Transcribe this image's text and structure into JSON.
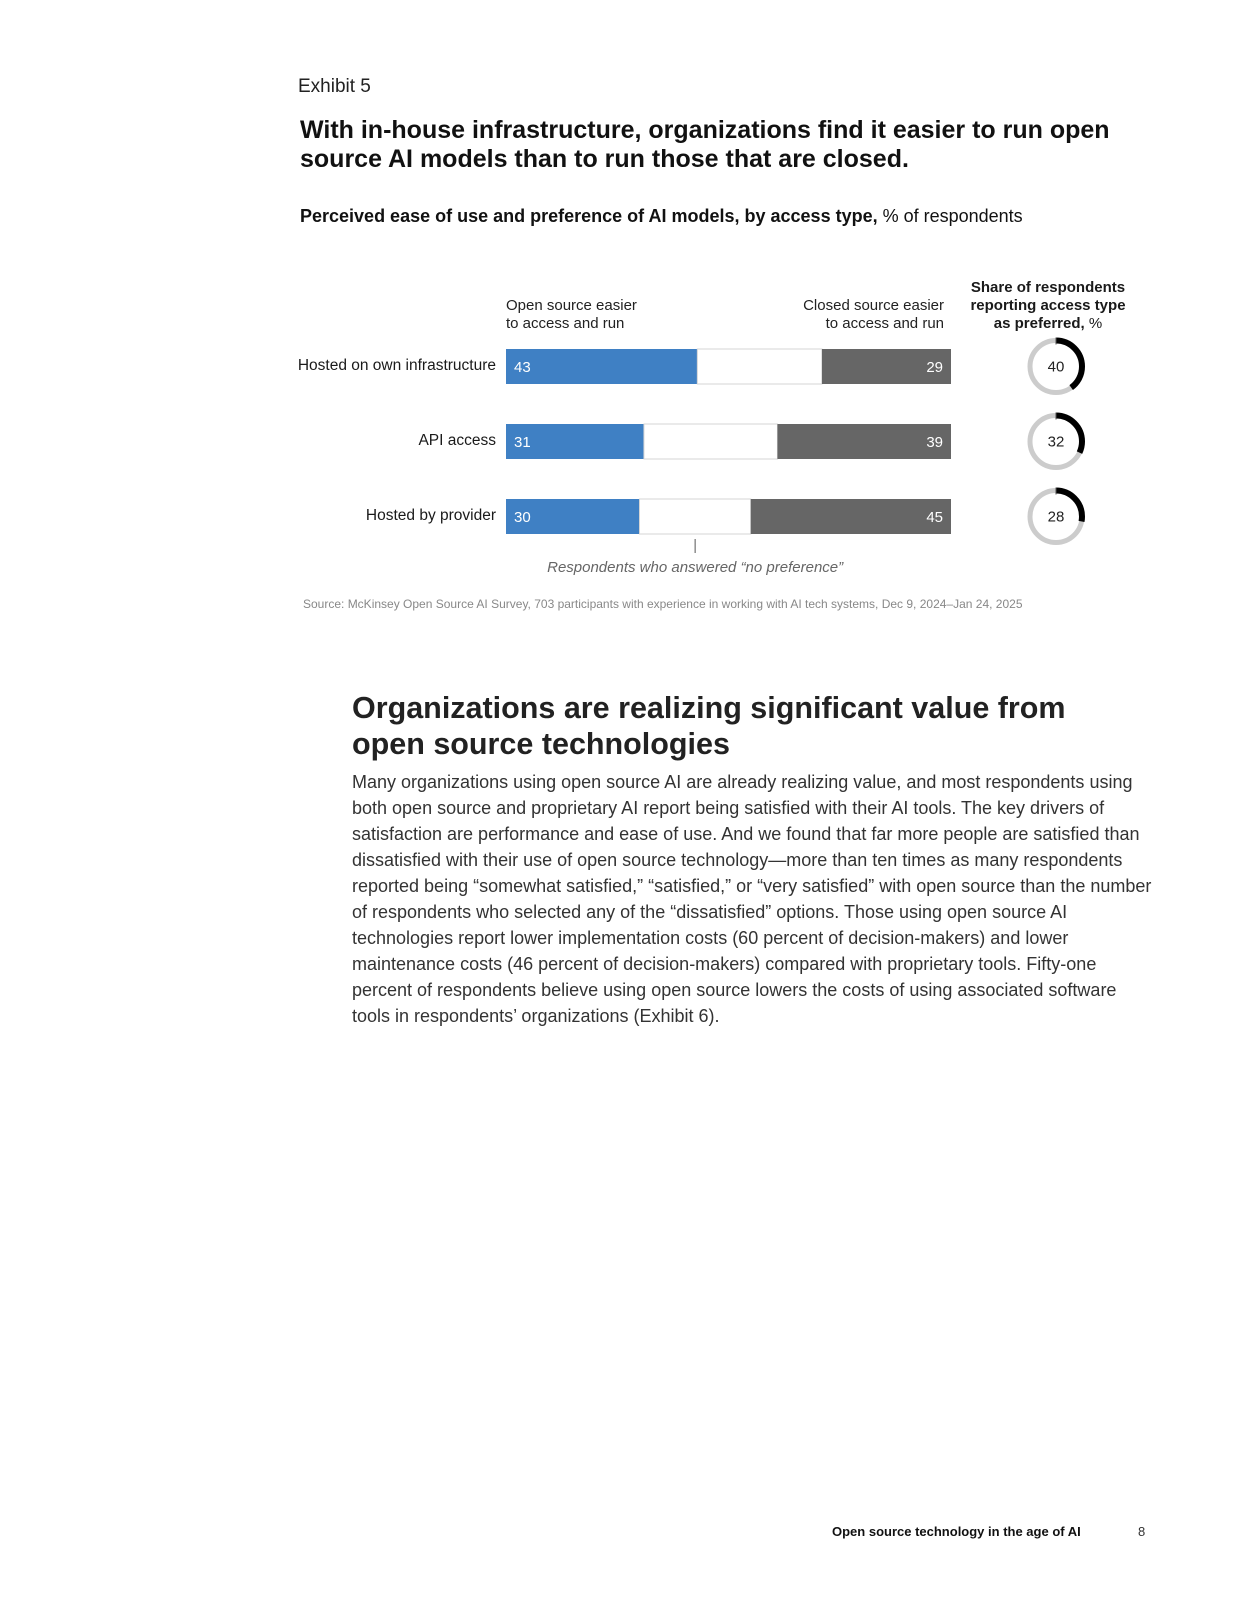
{
  "exhibit": {
    "label": "Exhibit 5",
    "title": "With in-house infrastructure, organizations find it easier to run open source AI models than to run those that are closed.",
    "subtitle_bold": "Perceived ease of use and preference of AI models, by access type,",
    "subtitle_rest": " % of respondents"
  },
  "chart_data": {
    "type": "bar",
    "stacked": true,
    "orientation": "horizontal",
    "categories": [
      "Hosted on own infrastructure",
      "API access",
      "Hosted by provider"
    ],
    "series": [
      {
        "name": "Open source easier to access and run",
        "values": [
          43,
          31,
          30
        ]
      },
      {
        "name": "Respondents who answered “no preference”",
        "values": [
          28,
          30,
          25
        ]
      },
      {
        "name": "Closed source easier to access and run",
        "values": [
          29,
          39,
          45
        ]
      }
    ],
    "open_header_line1": "Open source easier",
    "open_header_line2": "to access and run",
    "closed_header_line1": "Closed source easier",
    "closed_header_line2": "to access and run",
    "no_preference_label": "Respondents who answered “no preference”",
    "share_header_line1": "Share of respondents",
    "share_header_line2": "reporting access type",
    "share_header_line3_bold": "as preferred,",
    "share_header_line3_rest": " %",
    "share_preferred": [
      40,
      32,
      28
    ],
    "colors": {
      "open": "#3f80c4",
      "none": "#ffffff",
      "closed": "#666666",
      "donut": "#000000",
      "donut_track": "#cccccc"
    }
  },
  "source_note": "Source: McKinsey Open Source AI Survey, 703 participants with experience in working with AI tech systems, Dec 9, 2024–Jan 24, 2025",
  "section": {
    "heading": "Organizations are realizing significant value from open source technologies",
    "body": "Many organizations using open source AI are already realizing value, and most respondents using both open source and proprietary AI report being satisfied with their AI tools. The key drivers of satisfaction are performance and ease of use. And we found that far more people are satisfied than dissatisfied with their use of open source technology—more than ten times as many respondents reported being “somewhat satisfied,” “satisfied,” or “very satisfied” with open source than the number of respondents who selected any of the “dissatisfied” options. Those using open source AI technologies report lower implementation costs (60 percent of decision-makers) and lower maintenance costs (46 percent of decision-makers) compared with proprietary tools. Fifty-one percent of respondents believe using open source lowers the costs of using associated software tools in respondents’ organizations (Exhibit 6)."
  },
  "footer": {
    "title": "Open source technology in the age of AI",
    "page": "8"
  }
}
